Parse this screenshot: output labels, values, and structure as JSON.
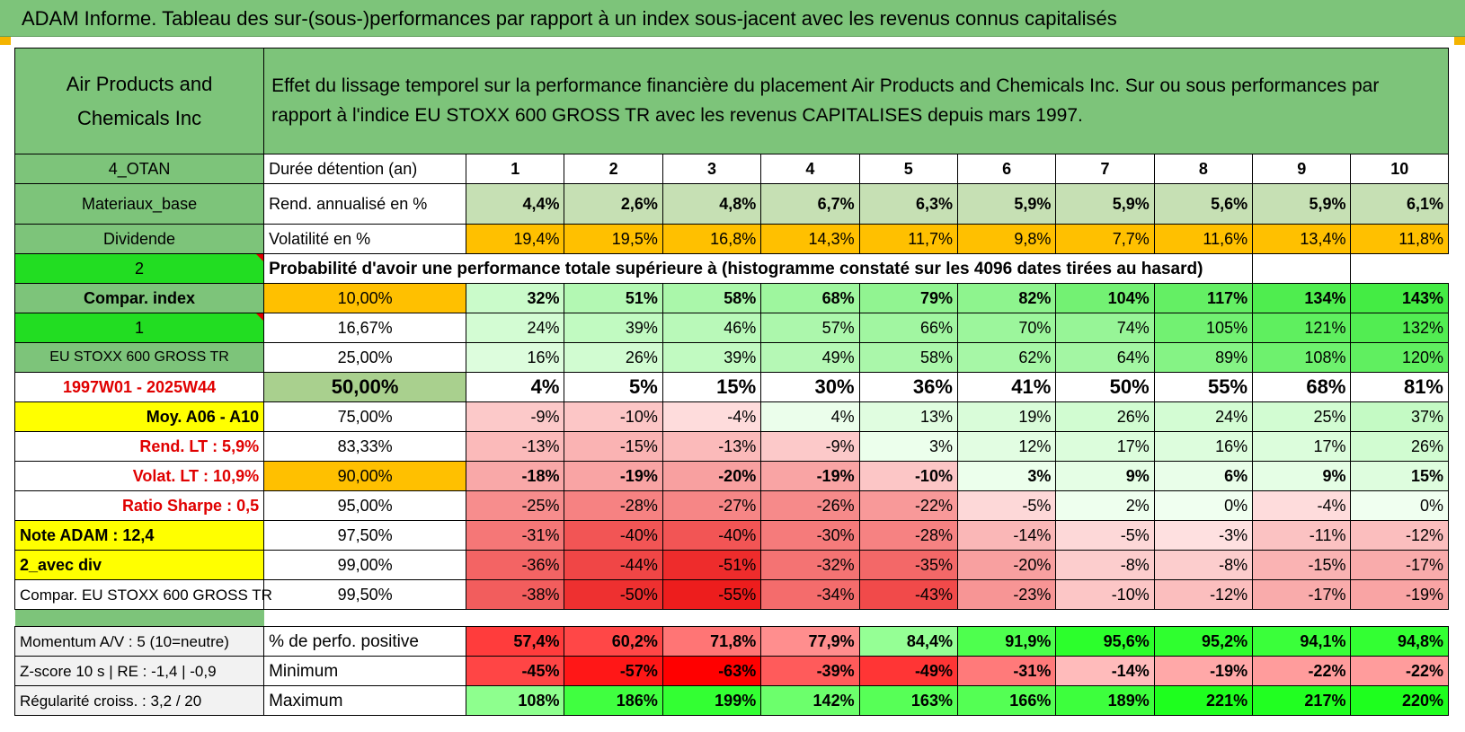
{
  "title": "ADAM Informe. Tableau des sur-(sous-)performances par rapport à un index sous-jacent avec les revenus connus capitalisés",
  "header": {
    "company": "Air Products and Chemicals Inc",
    "description": "Effet du lissage temporel sur la performance financière du placement Air Products and Chemicals Inc. Sur ou sous performances par rapport à l'indice EU STOXX 600 GROSS TR avec les revenus CAPITALISES depuis mars 1997."
  },
  "rows_top": {
    "duree": {
      "left": "4_OTAN",
      "label": "Durée détention (an)",
      "years": [
        "1",
        "2",
        "3",
        "4",
        "5",
        "6",
        "7",
        "8",
        "9",
        "10"
      ]
    },
    "rend": {
      "left": "Materiaux_base",
      "label": "Rend. annualisé en %",
      "values": [
        "4,4%",
        "2,6%",
        "4,8%",
        "6,7%",
        "6,3%",
        "5,9%",
        "5,9%",
        "5,6%",
        "5,9%",
        "6,1%"
      ]
    },
    "vol": {
      "left": "Dividende",
      "label": "Volatilité en %",
      "values": [
        "19,4%",
        "19,5%",
        "16,8%",
        "14,3%",
        "11,7%",
        "9,8%",
        "7,7%",
        "11,6%",
        "13,4%",
        "11,8%"
      ]
    },
    "prob": {
      "left": "2",
      "label": "Probabilité d'avoir une performance totale supérieure à (histogramme constaté sur les 4096 dates tirées au hasard)"
    }
  },
  "prob_rows": [
    {
      "left": "Compar. index",
      "pct": "10,00%",
      "values": [
        "32%",
        "51%",
        "58%",
        "68%",
        "79%",
        "82%",
        "104%",
        "117%",
        "134%",
        "143%"
      ]
    },
    {
      "left": "1",
      "pct": "16,67%",
      "values": [
        "24%",
        "39%",
        "46%",
        "57%",
        "66%",
        "70%",
        "74%",
        "105%",
        "121%",
        "132%"
      ]
    },
    {
      "left": "EU STOXX 600 GROSS TR",
      "pct": "25,00%",
      "values": [
        "16%",
        "26%",
        "39%",
        "49%",
        "58%",
        "62%",
        "64%",
        "89%",
        "108%",
        "120%"
      ]
    },
    {
      "left": "1997W01 - 2025W44",
      "pct": "50,00%",
      "values": [
        "4%",
        "5%",
        "15%",
        "30%",
        "36%",
        "41%",
        "50%",
        "55%",
        "68%",
        "81%"
      ]
    },
    {
      "left": "Moy. A06 - A10",
      "pct": "75,00%",
      "values": [
        "-9%",
        "-10%",
        "-4%",
        "4%",
        "13%",
        "19%",
        "26%",
        "24%",
        "25%",
        "37%"
      ]
    },
    {
      "left": "Rend. LT :    5,9%",
      "pct": "83,33%",
      "values": [
        "-13%",
        "-15%",
        "-13%",
        "-9%",
        "3%",
        "12%",
        "17%",
        "16%",
        "17%",
        "26%"
      ]
    },
    {
      "left": "Volat. LT :    10,9%",
      "pct": "90,00%",
      "values": [
        "-18%",
        "-19%",
        "-20%",
        "-19%",
        "-10%",
        "3%",
        "9%",
        "6%",
        "9%",
        "15%"
      ]
    },
    {
      "left": "Ratio Sharpe :     0,5",
      "pct": "95,00%",
      "values": [
        "-25%",
        "-28%",
        "-27%",
        "-26%",
        "-22%",
        "-5%",
        "2%",
        "0%",
        "-4%",
        "0%"
      ]
    },
    {
      "left": "Note ADAM : 12,4",
      "pct": "97,50%",
      "values": [
        "-31%",
        "-40%",
        "-40%",
        "-30%",
        "-28%",
        "-14%",
        "-5%",
        "-3%",
        "-11%",
        "-12%"
      ]
    },
    {
      "left": "2_avec div",
      "pct": "99,00%",
      "values": [
        "-36%",
        "-44%",
        "-51%",
        "-32%",
        "-35%",
        "-20%",
        "-8%",
        "-8%",
        "-15%",
        "-17%"
      ]
    },
    {
      "left": "Compar. EU STOXX 600 GROSS TR",
      "pct": "99,50%",
      "values": [
        "-38%",
        "-50%",
        "-55%",
        "-34%",
        "-43%",
        "-23%",
        "-10%",
        "-12%",
        "-17%",
        "-19%"
      ]
    }
  ],
  "stats_rows": [
    {
      "left": "Momentum A/V : 5 (10=neutre)",
      "label": "% de perfo. positive",
      "values": [
        "57,4%",
        "60,2%",
        "71,8%",
        "77,9%",
        "84,4%",
        "91,9%",
        "95,6%",
        "95,2%",
        "94,1%",
        "94,8%"
      ]
    },
    {
      "left": "Z-score 10 s | RE : -1,4 | -0,9",
      "label": "Minimum",
      "values": [
        "-45%",
        "-57%",
        "-63%",
        "-39%",
        "-49%",
        "-31%",
        "-14%",
        "-19%",
        "-22%",
        "-22%"
      ]
    },
    {
      "left": "Régularité croiss. : 3,2 / 20",
      "label": "Maximum",
      "values": [
        "108%",
        "186%",
        "199%",
        "142%",
        "163%",
        "166%",
        "189%",
        "221%",
        "217%",
        "220%"
      ]
    }
  ]
}
